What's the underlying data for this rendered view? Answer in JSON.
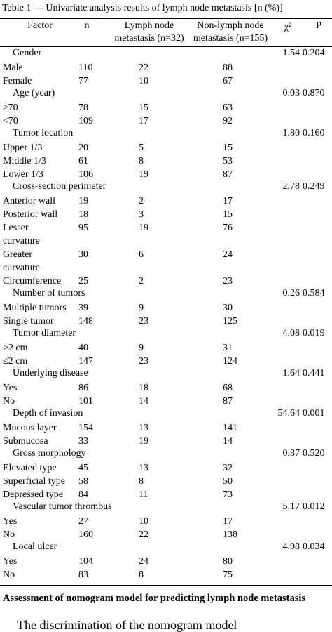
{
  "table": {
    "title": "Table 1 — Univariate analysis results of lymph node metastasis [n (%)]",
    "headers": {
      "factor": "Factor",
      "n": "n",
      "lymph": [
        "Lymph node",
        "metastasis (n=32)"
      ],
      "nonlymph": [
        "Non-lymph node",
        "metastasis (n=155)"
      ],
      "chi2": "χ²",
      "p": "P"
    },
    "rows": [
      {
        "factor": "Gender",
        "chi2": "1.54",
        "p": "0.204"
      },
      {
        "factor": "Male",
        "n": "110",
        "lymph": "22",
        "nonlymph": "88"
      },
      {
        "factor": "Female",
        "n": "77",
        "lymph": "10",
        "nonlymph": "67"
      },
      {
        "factor": "Age (year)",
        "chi2": "0.03",
        "p": "0.870"
      },
      {
        "factor": "≥70",
        "n": "78",
        "lymph": "15",
        "nonlymph": "63"
      },
      {
        "factor": "<70",
        "n": "109",
        "lymph": "17",
        "nonlymph": "92"
      },
      {
        "factor": "Tumor location",
        "chi2": "1.80",
        "p": "0.160"
      },
      {
        "factor": "Upper 1/3",
        "n": "20",
        "lymph": "5",
        "nonlymph": "15"
      },
      {
        "factor": "Middle 1/3",
        "n": "61",
        "lymph": "8",
        "nonlymph": "53"
      },
      {
        "factor": "Lower 1/3",
        "n": "106",
        "lymph": "19",
        "nonlymph": "87"
      },
      {
        "factor": "Cross-section perimeter",
        "chi2": "2.78",
        "p": "0.249"
      },
      {
        "factor": "Anterior wall",
        "n": "19",
        "lymph": "2",
        "nonlymph": "17"
      },
      {
        "factor": "Posterior wall",
        "n": "18",
        "lymph": "3",
        "nonlymph": "15"
      },
      {
        "factor": "Lesser curvature",
        "n": "95",
        "lymph": "19",
        "nonlymph": "76"
      },
      {
        "factor": "Greater curvature",
        "n": "30",
        "lymph": "6",
        "nonlymph": "24"
      },
      {
        "factor": "Circumference",
        "n": "25",
        "lymph": "2",
        "nonlymph": "23"
      },
      {
        "factor": "Number of tumors",
        "chi2": "0.26",
        "p": "0.584"
      },
      {
        "factor": "Multiple tumors",
        "n": "39",
        "lymph": "9",
        "nonlymph": "30"
      },
      {
        "factor": "Single tumor",
        "n": "148",
        "lymph": "23",
        "nonlymph": "125"
      },
      {
        "factor": "Tumor diameter",
        "chi2": "4.08",
        "p": "0.019"
      },
      {
        "factor": ">2 cm",
        "n": "40",
        "lymph": "9",
        "nonlymph": "31"
      },
      {
        "factor": "≤2 cm",
        "n": "147",
        "lymph": "23",
        "nonlymph": "124"
      },
      {
        "factor": "Underlying disease",
        "chi2": "1.64",
        "p": "0.441"
      },
      {
        "factor": "Yes",
        "n": "86",
        "lymph": "18",
        "nonlymph": "68"
      },
      {
        "factor": "No",
        "n": "101",
        "lymph": "14",
        "nonlymph": "87"
      },
      {
        "factor": "Depth of invasion",
        "chi2": "54.64",
        "p": "0.001"
      },
      {
        "factor": "Mucous layer",
        "n": "154",
        "lymph": "13",
        "nonlymph": "141"
      },
      {
        "factor": "Submucosa",
        "n": "33",
        "lymph": "19",
        "nonlymph": "14"
      },
      {
        "factor": "Gross morphology",
        "chi2": "0.37",
        "p": "0.520"
      },
      {
        "factor": "Elevated type",
        "n": "45",
        "lymph": "13",
        "nonlymph": "32"
      },
      {
        "factor": "Superficial type",
        "n": "58",
        "lymph": "8",
        "nonlymph": "50"
      },
      {
        "factor": "Depressed type",
        "n": "84",
        "lymph": "11",
        "nonlymph": "73"
      },
      {
        "factor": "Vascular tumor thrombus",
        "chi2": "5.17",
        "p": "0.012"
      },
      {
        "factor": "Yes",
        "n": "27",
        "lymph": "10",
        "nonlymph": "17"
      },
      {
        "factor": "No",
        "n": "160",
        "lymph": "22",
        "nonlymph": "138"
      },
      {
        "factor": "Local ulcer",
        "chi2": "4.98",
        "p": "0.034"
      },
      {
        "factor": "Yes",
        "n": "104",
        "lymph": "24",
        "nonlymph": "80"
      },
      {
        "factor": "No",
        "n": "83",
        "lymph": "8",
        "nonlymph": "75"
      }
    ]
  },
  "section": {
    "heading": "Assessment of nomogram model for predicting lymph node metastasis",
    "text": "The discrimination of the nomogram model"
  }
}
